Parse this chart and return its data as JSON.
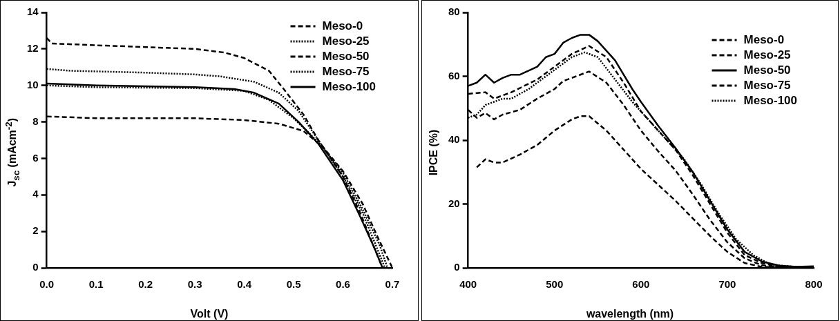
{
  "chart_data": [
    {
      "type": "line",
      "xlabel": "Volt (V)",
      "ylabel": "J$_{sc}$ (mAcm$^{-2}$)",
      "xlim": [
        0,
        0.7
      ],
      "xticks": [
        {
          "value": 0,
          "label": "0.0"
        },
        0.1,
        0.2,
        0.3,
        0.4,
        0.5,
        0.6,
        0.7
      ],
      "ylim": [
        0,
        14
      ],
      "yticks": [
        0,
        2,
        4,
        6,
        8,
        10,
        12,
        14
      ],
      "grid": false,
      "legend": "top right",
      "marker": "none",
      "series": [
        {
          "name": "Meso-0",
          "color": "#000000",
          "line_style": "dashed",
          "x": [
            0,
            0.1,
            0.3,
            0.4,
            0.47,
            0.52,
            0.56,
            0.6,
            0.64,
            0.67,
            0.7
          ],
          "values": [
            8.3,
            8.2,
            8.2,
            8.1,
            7.9,
            7.5,
            6.6,
            5.3,
            3.5,
            1.7,
            0
          ]
        },
        {
          "name": "Meso-25",
          "color": "#000000",
          "line_style": "dotted",
          "x": [
            0,
            0.1,
            0.3,
            0.4,
            0.45,
            0.5,
            0.55,
            0.6,
            0.64,
            0.675,
            0.69
          ],
          "values": [
            10.0,
            9.9,
            9.85,
            9.7,
            9.2,
            8.2,
            6.9,
            5.2,
            3.2,
            1.2,
            0
          ]
        },
        {
          "name": "Meso-50",
          "color": "#000000",
          "line_style": "dashed",
          "x": [
            0,
            0.01,
            0.1,
            0.2,
            0.3,
            0.36,
            0.4,
            0.45,
            0.48,
            0.52,
            0.55,
            0.6,
            0.635,
            0.665,
            0.68
          ],
          "values": [
            12.6,
            12.3,
            12.2,
            12.1,
            12.0,
            11.8,
            11.5,
            10.8,
            9.8,
            8.4,
            7.0,
            5.0,
            3.0,
            1.0,
            0
          ]
        },
        {
          "name": "Meso-75",
          "color": "#000000",
          "line_style": "dotted",
          "x": [
            0,
            0.05,
            0.2,
            0.3,
            0.35,
            0.42,
            0.47,
            0.51,
            0.55,
            0.6,
            0.64,
            0.67,
            0.685
          ],
          "values": [
            10.9,
            10.8,
            10.7,
            10.6,
            10.5,
            10.2,
            9.6,
            8.6,
            7.0,
            5.0,
            3.0,
            1.0,
            0
          ]
        },
        {
          "name": "Meso-100",
          "color": "#000000",
          "line_style": "solid",
          "x": [
            0,
            0.1,
            0.3,
            0.38,
            0.42,
            0.47,
            0.51,
            0.55,
            0.6,
            0.635,
            0.665,
            0.68
          ],
          "values": [
            10.1,
            10.0,
            9.9,
            9.8,
            9.6,
            9.0,
            8.0,
            6.8,
            4.8,
            2.8,
            1.0,
            0
          ]
        }
      ]
    },
    {
      "type": "line",
      "xlabel": "wavelength (nm)",
      "ylabel": "IPCE (%)",
      "xlim": [
        400,
        800
      ],
      "xticks": [
        400,
        500,
        600,
        700,
        800
      ],
      "ylim": [
        0,
        80
      ],
      "yticks": [
        0,
        20,
        40,
        60,
        80
      ],
      "grid": false,
      "legend": "top right",
      "marker": "none",
      "series": [
        {
          "name": "Meso-0",
          "color": "#000000",
          "line_style": "dashed",
          "x": [
            410,
            420,
            430,
            440,
            460,
            480,
            500,
            520,
            530,
            540,
            560,
            580,
            600,
            620,
            640,
            660,
            680,
            700,
            720,
            740,
            760,
            800
          ],
          "values": [
            31.5,
            34,
            33,
            33,
            35.5,
            38.5,
            43,
            46.5,
            47.5,
            47.5,
            43,
            37,
            31,
            26,
            21,
            15.5,
            10,
            5,
            1.5,
            0.3,
            0.2,
            0.3
          ]
        },
        {
          "name": "Meso-25",
          "color": "#000000",
          "line_style": "dashed",
          "x": [
            400,
            420,
            430,
            450,
            480,
            500,
            520,
            540,
            560,
            580,
            600,
            620,
            640,
            660,
            680,
            700,
            720,
            740,
            760,
            800
          ],
          "values": [
            54.5,
            55,
            53,
            55,
            59,
            63,
            67,
            69.5,
            66,
            58,
            49,
            43,
            37,
            29,
            20,
            11,
            4,
            1.5,
            0.3,
            0.3
          ]
        },
        {
          "name": "Meso-50",
          "color": "#000000",
          "line_style": "solid",
          "x": [
            400,
            410,
            420,
            430,
            440,
            450,
            460,
            480,
            490,
            500,
            510,
            520,
            530,
            540,
            550,
            570,
            590,
            600,
            620,
            640,
            660,
            680,
            700,
            720,
            740,
            760,
            780,
            800
          ],
          "values": [
            57,
            58,
            60.5,
            58,
            59.5,
            60.5,
            60.5,
            63,
            66,
            67,
            70.5,
            72,
            73,
            73,
            71,
            65,
            56,
            52,
            44.5,
            37.5,
            30,
            21,
            12,
            5,
            2,
            0.7,
            0.3,
            0.5
          ]
        },
        {
          "name": "Meso-75",
          "color": "#000000",
          "line_style": "dashed",
          "x": [
            400,
            410,
            420,
            430,
            440,
            460,
            480,
            500,
            510,
            540,
            560,
            580,
            600,
            620,
            640,
            660,
            680,
            700,
            720,
            740,
            760,
            800
          ],
          "values": [
            49.5,
            47,
            48.5,
            46.5,
            48,
            49.5,
            53,
            56,
            58.5,
            61.5,
            58,
            51,
            43,
            36.5,
            30.5,
            23,
            15,
            8,
            3,
            0.8,
            0.2,
            0.3
          ]
        },
        {
          "name": "Meso-100",
          "color": "#000000",
          "line_style": "dotted",
          "x": [
            400,
            410,
            420,
            440,
            450,
            470,
            500,
            520,
            535,
            550,
            570,
            590,
            610,
            630,
            650,
            670,
            690,
            710,
            730,
            750,
            780,
            800
          ],
          "values": [
            47,
            48,
            51,
            53,
            53,
            56,
            62,
            66,
            67.5,
            66,
            59,
            52,
            46,
            40,
            34,
            26,
            17,
            9,
            4,
            1,
            0.3,
            0.3
          ]
        }
      ]
    }
  ]
}
